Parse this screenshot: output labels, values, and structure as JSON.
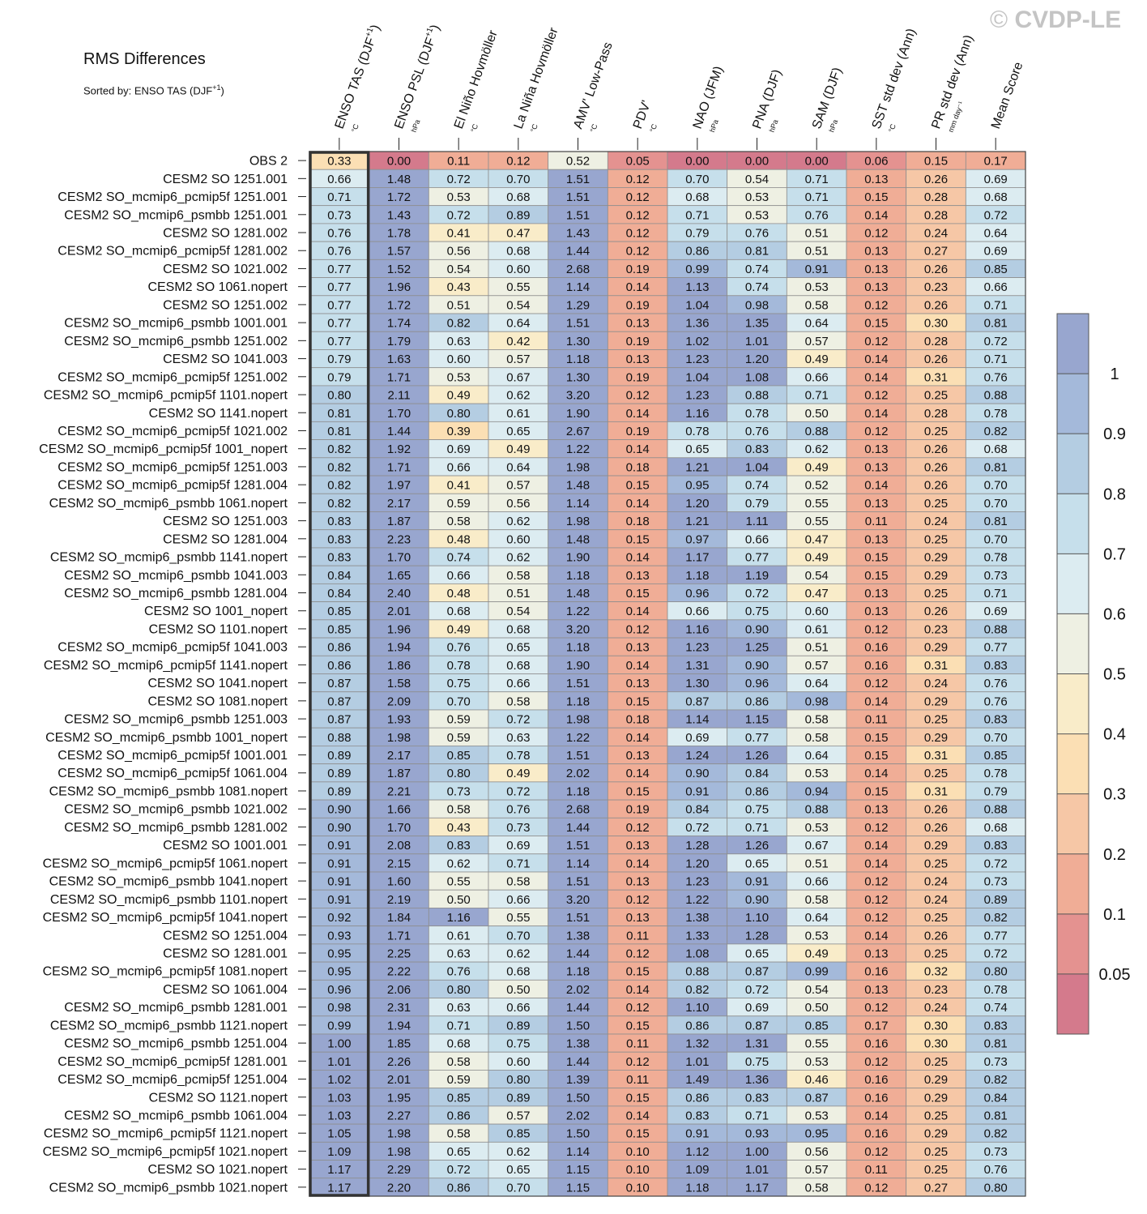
{
  "watermark": {
    "symbol": "©",
    "text": "CVDP-LE"
  },
  "chart_data": {
    "type": "heatmap",
    "title": "RMS Differences",
    "subtitle": {
      "prefix": "Sorted by: ENSO TAS (DJF",
      "sup": "+1",
      "suffix": ")"
    },
    "highlighted_column": "ENSO TAS (DJF+1)",
    "columns": [
      {
        "label": "ENSO TAS (DJF",
        "sup": "+1",
        "close": ")",
        "unit": "°C"
      },
      {
        "label": "ENSO PSL (DJF",
        "sup": "+1",
        "close": ")",
        "unit": "hPa"
      },
      {
        "label": "El Niño Hovmöller",
        "sup": "",
        "close": "",
        "unit": "°C"
      },
      {
        "label": "La Niña Hovmöller",
        "sup": "",
        "close": "",
        "unit": "°C"
      },
      {
        "label": "AMV' Low-Pass",
        "sup": "",
        "close": "",
        "unit": "°C"
      },
      {
        "label": "PDV'",
        "sup": "",
        "close": "",
        "unit": "°C"
      },
      {
        "label": "NAO (JFM)",
        "sup": "",
        "close": "",
        "unit": "hPa"
      },
      {
        "label": "PNA (DJF)",
        "sup": "",
        "close": "",
        "unit": "hPa"
      },
      {
        "label": "SAM (DJF)",
        "sup": "",
        "close": "",
        "unit": "hPa"
      },
      {
        "label": "SST std dev (Ann)",
        "sup": "",
        "close": "",
        "unit": "°C"
      },
      {
        "label": "PR std dev (Ann)",
        "sup": "",
        "close": "",
        "unit": "mm day⁻¹"
      },
      {
        "label": "Mean Score",
        "sup": "",
        "close": "",
        "unit": ""
      }
    ],
    "rows": [
      {
        "name": "OBS 2",
        "values": [
          0.33,
          0.0,
          0.11,
          0.12,
          0.52,
          0.05,
          0.0,
          0.0,
          0.0,
          0.06,
          0.15,
          0.17
        ]
      },
      {
        "name": "CESM2 SO 1251.001",
        "values": [
          0.66,
          1.48,
          0.72,
          0.7,
          1.51,
          0.12,
          0.7,
          0.54,
          0.71,
          0.13,
          0.26,
          0.69
        ]
      },
      {
        "name": "CESM2 SO_mcmip6_pcmip5f 1251.001",
        "values": [
          0.71,
          1.72,
          0.53,
          0.68,
          1.51,
          0.12,
          0.68,
          0.53,
          0.71,
          0.15,
          0.28,
          0.68
        ]
      },
      {
        "name": "CESM2 SO_mcmip6_psmbb 1251.001",
        "values": [
          0.73,
          1.43,
          0.72,
          0.89,
          1.51,
          0.12,
          0.71,
          0.53,
          0.76,
          0.14,
          0.28,
          0.72
        ]
      },
      {
        "name": "CESM2 SO 1281.002",
        "values": [
          0.76,
          1.78,
          0.41,
          0.47,
          1.43,
          0.12,
          0.79,
          0.76,
          0.51,
          0.12,
          0.24,
          0.64
        ]
      },
      {
        "name": "CESM2 SO_mcmip6_pcmip5f 1281.002",
        "values": [
          0.76,
          1.57,
          0.56,
          0.68,
          1.44,
          0.12,
          0.86,
          0.81,
          0.51,
          0.13,
          0.27,
          0.69
        ]
      },
      {
        "name": "CESM2 SO 1021.002",
        "values": [
          0.77,
          1.52,
          0.54,
          0.6,
          2.68,
          0.19,
          0.99,
          0.74,
          0.91,
          0.13,
          0.26,
          0.85
        ]
      },
      {
        "name": "CESM2 SO 1061.nopert",
        "values": [
          0.77,
          1.96,
          0.43,
          0.55,
          1.14,
          0.14,
          1.13,
          0.74,
          0.53,
          0.13,
          0.23,
          0.66
        ]
      },
      {
        "name": "CESM2 SO 1251.002",
        "values": [
          0.77,
          1.72,
          0.51,
          0.54,
          1.29,
          0.19,
          1.04,
          0.98,
          0.58,
          0.12,
          0.26,
          0.71
        ]
      },
      {
        "name": "CESM2 SO_mcmip6_psmbb 1001.001",
        "values": [
          0.77,
          1.74,
          0.82,
          0.64,
          1.51,
          0.13,
          1.36,
          1.35,
          0.64,
          0.15,
          0.3,
          0.81
        ]
      },
      {
        "name": "CESM2 SO_mcmip6_psmbb 1251.002",
        "values": [
          0.77,
          1.79,
          0.63,
          0.42,
          1.3,
          0.19,
          1.02,
          1.01,
          0.57,
          0.12,
          0.28,
          0.72
        ]
      },
      {
        "name": "CESM2 SO 1041.003",
        "values": [
          0.79,
          1.63,
          0.6,
          0.57,
          1.18,
          0.13,
          1.23,
          1.2,
          0.49,
          0.14,
          0.26,
          0.71
        ]
      },
      {
        "name": "CESM2 SO_mcmip6_pcmip5f 1251.002",
        "values": [
          0.79,
          1.71,
          0.53,
          0.67,
          1.3,
          0.19,
          1.04,
          1.08,
          0.66,
          0.14,
          0.31,
          0.76
        ]
      },
      {
        "name": "CESM2 SO_mcmip6_pcmip5f 1101.nopert",
        "values": [
          0.8,
          2.11,
          0.49,
          0.62,
          3.2,
          0.12,
          1.23,
          0.88,
          0.71,
          0.12,
          0.25,
          0.88
        ]
      },
      {
        "name": "CESM2 SO 1141.nopert",
        "values": [
          0.81,
          1.7,
          0.8,
          0.61,
          1.9,
          0.14,
          1.16,
          0.78,
          0.5,
          0.14,
          0.28,
          0.78
        ]
      },
      {
        "name": "CESM2 SO_mcmip6_pcmip5f 1021.002",
        "values": [
          0.81,
          1.44,
          0.39,
          0.65,
          2.67,
          0.19,
          0.78,
          0.76,
          0.88,
          0.12,
          0.25,
          0.82
        ]
      },
      {
        "name": "CESM2 SO_mcmip6_pcmip5f 1001_nopert",
        "values": [
          0.82,
          1.92,
          0.69,
          0.49,
          1.22,
          0.14,
          0.65,
          0.83,
          0.62,
          0.13,
          0.26,
          0.68
        ]
      },
      {
        "name": "CESM2 SO_mcmip6_pcmip5f 1251.003",
        "values": [
          0.82,
          1.71,
          0.66,
          0.64,
          1.98,
          0.18,
          1.21,
          1.04,
          0.49,
          0.13,
          0.26,
          0.81
        ]
      },
      {
        "name": "CESM2 SO_mcmip6_pcmip5f 1281.004",
        "values": [
          0.82,
          1.97,
          0.41,
          0.57,
          1.48,
          0.15,
          0.95,
          0.74,
          0.52,
          0.14,
          0.26,
          0.7
        ]
      },
      {
        "name": "CESM2 SO_mcmip6_psmbb 1061.nopert",
        "values": [
          0.82,
          2.17,
          0.59,
          0.56,
          1.14,
          0.14,
          1.2,
          0.79,
          0.55,
          0.13,
          0.25,
          0.7
        ]
      },
      {
        "name": "CESM2 SO 1251.003",
        "values": [
          0.83,
          1.87,
          0.58,
          0.62,
          1.98,
          0.18,
          1.21,
          1.11,
          0.55,
          0.11,
          0.24,
          0.81
        ]
      },
      {
        "name": "CESM2 SO 1281.004",
        "values": [
          0.83,
          2.23,
          0.48,
          0.6,
          1.48,
          0.15,
          0.97,
          0.66,
          0.47,
          0.13,
          0.25,
          0.7
        ]
      },
      {
        "name": "CESM2 SO_mcmip6_psmbb 1141.nopert",
        "values": [
          0.83,
          1.7,
          0.74,
          0.62,
          1.9,
          0.14,
          1.17,
          0.77,
          0.49,
          0.15,
          0.29,
          0.78
        ]
      },
      {
        "name": "CESM2 SO_mcmip6_psmbb 1041.003",
        "values": [
          0.84,
          1.65,
          0.66,
          0.58,
          1.18,
          0.13,
          1.18,
          1.19,
          0.54,
          0.15,
          0.29,
          0.73
        ]
      },
      {
        "name": "CESM2 SO_mcmip6_psmbb 1281.004",
        "values": [
          0.84,
          2.4,
          0.48,
          0.51,
          1.48,
          0.15,
          0.96,
          0.72,
          0.47,
          0.13,
          0.25,
          0.71
        ]
      },
      {
        "name": "CESM2 SO 1001_nopert",
        "values": [
          0.85,
          2.01,
          0.68,
          0.54,
          1.22,
          0.14,
          0.66,
          0.75,
          0.6,
          0.13,
          0.26,
          0.69
        ]
      },
      {
        "name": "CESM2 SO 1101.nopert",
        "values": [
          0.85,
          1.96,
          0.49,
          0.68,
          3.2,
          0.12,
          1.16,
          0.9,
          0.61,
          0.12,
          0.23,
          0.88
        ]
      },
      {
        "name": "CESM2 SO_mcmip6_pcmip5f 1041.003",
        "values": [
          0.86,
          1.94,
          0.76,
          0.65,
          1.18,
          0.13,
          1.23,
          1.25,
          0.51,
          0.16,
          0.29,
          0.77
        ]
      },
      {
        "name": "CESM2 SO_mcmip6_pcmip5f 1141.nopert",
        "values": [
          0.86,
          1.86,
          0.78,
          0.68,
          1.9,
          0.14,
          1.31,
          0.9,
          0.57,
          0.16,
          0.31,
          0.83
        ]
      },
      {
        "name": "CESM2 SO 1041.nopert",
        "values": [
          0.87,
          1.58,
          0.75,
          0.66,
          1.51,
          0.13,
          1.3,
          0.96,
          0.64,
          0.12,
          0.24,
          0.76
        ]
      },
      {
        "name": "CESM2 SO 1081.nopert",
        "values": [
          0.87,
          2.09,
          0.7,
          0.58,
          1.18,
          0.15,
          0.87,
          0.86,
          0.98,
          0.14,
          0.29,
          0.76
        ]
      },
      {
        "name": "CESM2 SO_mcmip6_psmbb 1251.003",
        "values": [
          0.87,
          1.93,
          0.59,
          0.72,
          1.98,
          0.18,
          1.14,
          1.15,
          0.58,
          0.11,
          0.25,
          0.83
        ]
      },
      {
        "name": "CESM2 SO_mcmip6_psmbb 1001_nopert",
        "values": [
          0.88,
          1.98,
          0.59,
          0.63,
          1.22,
          0.14,
          0.69,
          0.77,
          0.58,
          0.15,
          0.29,
          0.7
        ]
      },
      {
        "name": "CESM2 SO_mcmip6_pcmip5f 1001.001",
        "values": [
          0.89,
          2.17,
          0.85,
          0.78,
          1.51,
          0.13,
          1.24,
          1.26,
          0.64,
          0.15,
          0.31,
          0.85
        ]
      },
      {
        "name": "CESM2 SO_mcmip6_pcmip5f 1061.004",
        "values": [
          0.89,
          1.87,
          0.8,
          0.49,
          2.02,
          0.14,
          0.9,
          0.84,
          0.53,
          0.14,
          0.25,
          0.78
        ]
      },
      {
        "name": "CESM2 SO_mcmip6_psmbb 1081.nopert",
        "values": [
          0.89,
          2.21,
          0.73,
          0.72,
          1.18,
          0.15,
          0.91,
          0.86,
          0.94,
          0.15,
          0.31,
          0.79
        ]
      },
      {
        "name": "CESM2 SO_mcmip6_psmbb 1021.002",
        "values": [
          0.9,
          1.66,
          0.58,
          0.76,
          2.68,
          0.19,
          0.84,
          0.75,
          0.88,
          0.13,
          0.26,
          0.88
        ]
      },
      {
        "name": "CESM2 SO_mcmip6_psmbb 1281.002",
        "values": [
          0.9,
          1.7,
          0.43,
          0.73,
          1.44,
          0.12,
          0.72,
          0.71,
          0.53,
          0.12,
          0.26,
          0.68
        ]
      },
      {
        "name": "CESM2 SO 1001.001",
        "values": [
          0.91,
          2.08,
          0.83,
          0.69,
          1.51,
          0.13,
          1.28,
          1.26,
          0.67,
          0.14,
          0.29,
          0.83
        ]
      },
      {
        "name": "CESM2 SO_mcmip6_pcmip5f 1061.nopert",
        "values": [
          0.91,
          2.15,
          0.62,
          0.71,
          1.14,
          0.14,
          1.2,
          0.65,
          0.51,
          0.14,
          0.25,
          0.72
        ]
      },
      {
        "name": "CESM2 SO_mcmip6_psmbb 1041.nopert",
        "values": [
          0.91,
          1.6,
          0.55,
          0.58,
          1.51,
          0.13,
          1.23,
          0.91,
          0.66,
          0.12,
          0.24,
          0.73
        ]
      },
      {
        "name": "CESM2 SO_mcmip6_psmbb 1101.nopert",
        "values": [
          0.91,
          2.19,
          0.5,
          0.66,
          3.2,
          0.12,
          1.22,
          0.9,
          0.58,
          0.12,
          0.24,
          0.89
        ]
      },
      {
        "name": "CESM2 SO_mcmip6_pcmip5f 1041.nopert",
        "values": [
          0.92,
          1.84,
          1.16,
          0.55,
          1.51,
          0.13,
          1.38,
          1.1,
          0.64,
          0.12,
          0.25,
          0.82
        ]
      },
      {
        "name": "CESM2 SO 1251.004",
        "values": [
          0.93,
          1.71,
          0.61,
          0.7,
          1.38,
          0.11,
          1.33,
          1.28,
          0.53,
          0.14,
          0.26,
          0.77
        ]
      },
      {
        "name": "CESM2 SO 1281.001",
        "values": [
          0.95,
          2.25,
          0.63,
          0.62,
          1.44,
          0.12,
          1.08,
          0.65,
          0.49,
          0.13,
          0.25,
          0.72
        ]
      },
      {
        "name": "CESM2 SO_mcmip6_pcmip5f 1081.nopert",
        "values": [
          0.95,
          2.22,
          0.76,
          0.68,
          1.18,
          0.15,
          0.88,
          0.87,
          0.99,
          0.16,
          0.32,
          0.8
        ]
      },
      {
        "name": "CESM2 SO 1061.004",
        "values": [
          0.96,
          2.06,
          0.8,
          0.5,
          2.02,
          0.14,
          0.82,
          0.72,
          0.54,
          0.13,
          0.23,
          0.78
        ]
      },
      {
        "name": "CESM2 SO_mcmip6_psmbb 1281.001",
        "values": [
          0.98,
          2.31,
          0.63,
          0.66,
          1.44,
          0.12,
          1.1,
          0.69,
          0.5,
          0.12,
          0.24,
          0.74
        ]
      },
      {
        "name": "CESM2 SO_mcmip6_psmbb 1121.nopert",
        "values": [
          0.99,
          1.94,
          0.71,
          0.89,
          1.5,
          0.15,
          0.86,
          0.87,
          0.85,
          0.17,
          0.3,
          0.83
        ]
      },
      {
        "name": "CESM2 SO_mcmip6_psmbb 1251.004",
        "values": [
          1.0,
          1.85,
          0.68,
          0.75,
          1.38,
          0.11,
          1.32,
          1.31,
          0.55,
          0.16,
          0.3,
          0.81
        ]
      },
      {
        "name": "CESM2 SO_mcmip6_pcmip5f 1281.001",
        "values": [
          1.01,
          2.26,
          0.58,
          0.6,
          1.44,
          0.12,
          1.01,
          0.75,
          0.53,
          0.12,
          0.25,
          0.73
        ]
      },
      {
        "name": "CESM2 SO_mcmip6_pcmip5f 1251.004",
        "values": [
          1.02,
          2.01,
          0.59,
          0.8,
          1.39,
          0.11,
          1.49,
          1.36,
          0.46,
          0.16,
          0.29,
          0.82
        ]
      },
      {
        "name": "CESM2 SO 1121.nopert",
        "values": [
          1.03,
          1.95,
          0.85,
          0.89,
          1.5,
          0.15,
          0.86,
          0.83,
          0.87,
          0.16,
          0.29,
          0.84
        ]
      },
      {
        "name": "CESM2 SO_mcmip6_psmbb 1061.004",
        "values": [
          1.03,
          2.27,
          0.86,
          0.57,
          2.02,
          0.14,
          0.83,
          0.71,
          0.53,
          0.14,
          0.25,
          0.81
        ]
      },
      {
        "name": "CESM2 SO_mcmip6_pcmip5f 1121.nopert",
        "values": [
          1.05,
          1.98,
          0.58,
          0.85,
          1.5,
          0.15,
          0.91,
          0.93,
          0.95,
          0.16,
          0.29,
          0.82
        ]
      },
      {
        "name": "CESM2 SO_mcmip6_pcmip5f 1021.nopert",
        "values": [
          1.09,
          1.98,
          0.65,
          0.62,
          1.14,
          0.1,
          1.12,
          1.0,
          0.56,
          0.12,
          0.25,
          0.73
        ]
      },
      {
        "name": "CESM2 SO 1021.nopert",
        "values": [
          1.17,
          2.29,
          0.72,
          0.65,
          1.15,
          0.1,
          1.09,
          1.01,
          0.57,
          0.11,
          0.25,
          0.76
        ]
      },
      {
        "name": "CESM2 SO_mcmip6_psmbb 1021.nopert",
        "values": [
          1.17,
          2.2,
          0.86,
          0.7,
          1.15,
          0.1,
          1.18,
          1.17,
          0.58,
          0.12,
          0.27,
          0.8
        ]
      }
    ],
    "colorbar": {
      "levels": [
        0.05,
        0.1,
        0.2,
        0.3,
        0.4,
        0.5,
        0.6,
        0.7,
        0.8,
        0.9,
        1
      ],
      "labels": [
        "0.05",
        "0.1",
        "0.2",
        "0.3",
        "0.4",
        "0.5",
        "0.6",
        "0.7",
        "0.8",
        "0.9",
        "1"
      ],
      "colors": [
        "#d47a8c",
        "#e49290",
        "#f0ad96",
        "#f6c7a6",
        "#fbdfb4",
        "#f9ecc9",
        "#eef0e3",
        "#dcecf1",
        "#c6dfeb",
        "#b4cde2",
        "#a4b9da",
        "#98a6cf"
      ]
    }
  }
}
